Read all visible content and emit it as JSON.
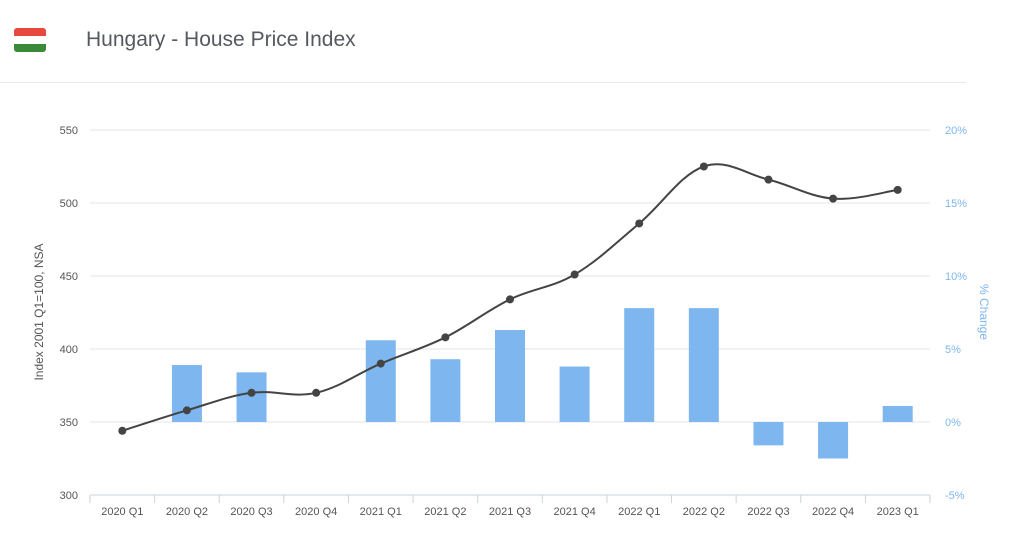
{
  "header": {
    "title": "Hungary - House Price Index",
    "flag_colors": [
      "#e8473f",
      "#ffffff",
      "#3a8a3a"
    ]
  },
  "colors": {
    "line": "#444444",
    "bars": "#7eb6ef",
    "grid": "#e6e6e6",
    "axis_right": "#7eb6ef",
    "text": "#555555"
  },
  "chart_data": {
    "type": "bar+line",
    "categories": [
      "2020 Q1",
      "2020 Q2",
      "2020 Q3",
      "2020 Q4",
      "2021 Q1",
      "2021 Q2",
      "2021 Q3",
      "2021 Q4",
      "2022 Q1",
      "2022 Q2",
      "2022 Q3",
      "2022 Q4",
      "2023 Q1"
    ],
    "series": [
      {
        "type": "line",
        "axis": "left",
        "values": [
          344,
          358,
          370,
          370,
          390,
          408,
          434,
          451,
          486,
          525,
          516,
          503,
          509
        ]
      },
      {
        "type": "bar",
        "axis": "right",
        "values": [
          0.0,
          3.9,
          3.4,
          0.0,
          5.6,
          4.3,
          6.3,
          3.8,
          7.8,
          7.8,
          -1.6,
          -2.5,
          1.1
        ]
      }
    ],
    "ylabel": "Index 2001 Q1=100, NSA",
    "y2label": "% Change",
    "ylim": [
      300,
      550
    ],
    "y2lim": [
      -5,
      20
    ],
    "yticks": [
      "300",
      "350",
      "400",
      "450",
      "500",
      "550"
    ],
    "y2ticks": [
      "-5%",
      "0%",
      "5%",
      "10%",
      "15%",
      "20%"
    ],
    "grid": true,
    "legend": "none"
  }
}
